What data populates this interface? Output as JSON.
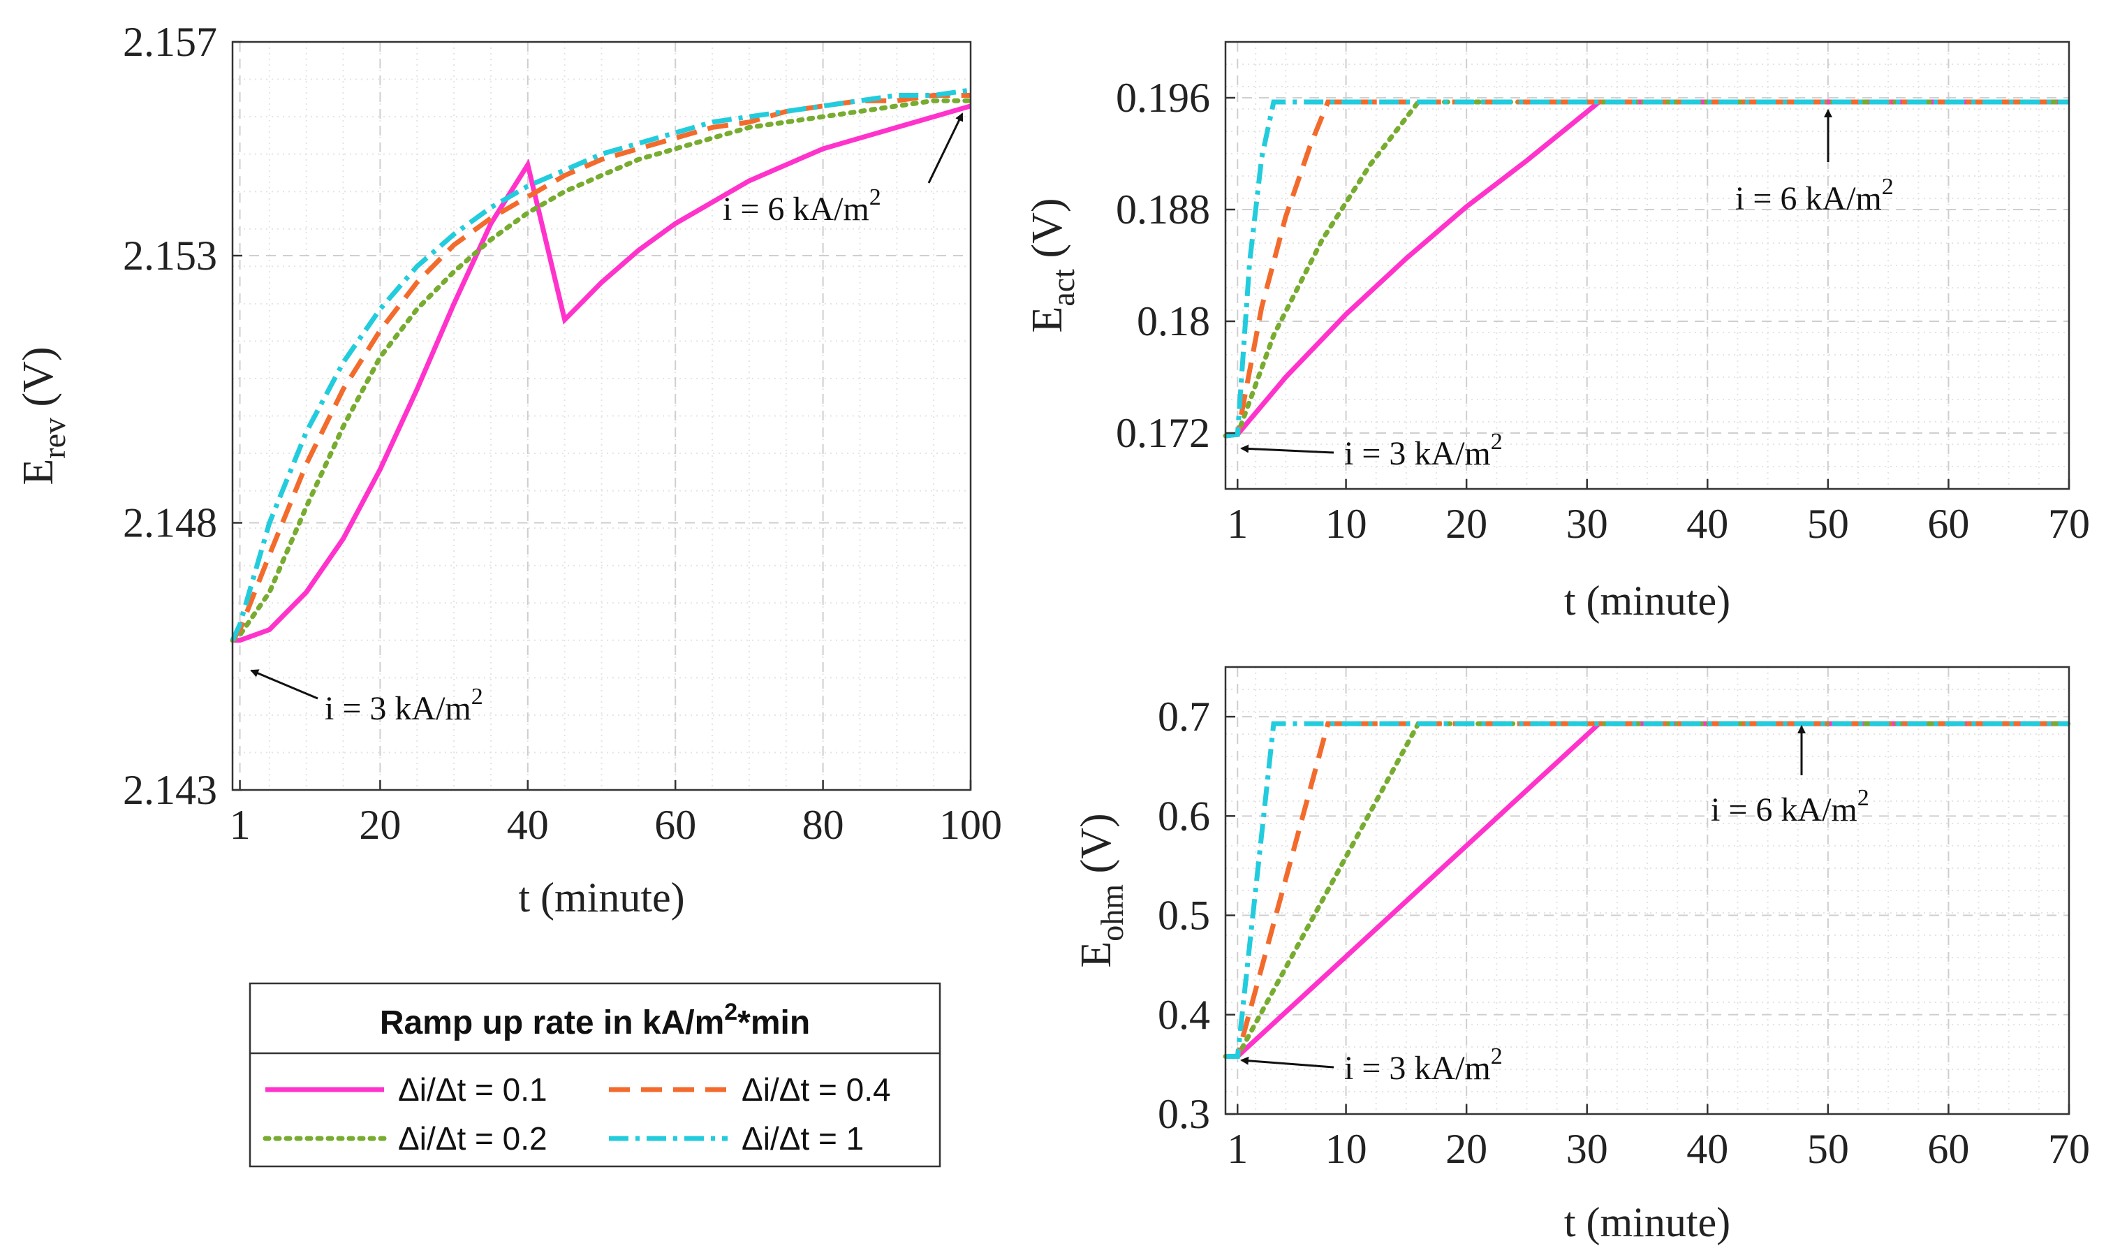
{
  "colors": {
    "rate_0_1": "#ff33cc",
    "rate_0_2": "#77ac30",
    "rate_0_4": "#f36b2c",
    "rate_1": "#22ccdd"
  },
  "legend": {
    "title_prefix": "Ramp up rate in kA/m",
    "title_sup": "2",
    "title_suffix": "*min",
    "entries": [
      {
        "key": "rate_0_1",
        "label": "Δi/Δt = 0.1",
        "dash": "solid"
      },
      {
        "key": "rate_0_4",
        "label": "Δi/Δt = 0.4",
        "dash": "dashed"
      },
      {
        "key": "rate_0_2",
        "label": "Δi/Δt = 0.2",
        "dash": "dotted"
      },
      {
        "key": "rate_1",
        "label": "Δi/Δt = 1",
        "dash": "dashdot"
      }
    ]
  },
  "annotations": {
    "low_prefix": "i = 3 kA/m",
    "high_prefix": "i = 6 kA/m",
    "sup": "2"
  },
  "chart_data": [
    {
      "id": "erev",
      "type": "line",
      "xlabel": "t (minute)",
      "ylabel_main": "E",
      "ylabel_sub": "rev",
      "ylabel_unit": " (V)",
      "xlim": [
        0,
        100
      ],
      "ylim": [
        2.143,
        2.157
      ],
      "xticks": [
        1,
        20,
        40,
        60,
        80,
        100
      ],
      "yticks": [
        2.143,
        2.148,
        2.153,
        2.157
      ],
      "ytick_labels": [
        "2.143",
        "2.148",
        "2.153",
        "2.157"
      ],
      "series": [
        {
          "key": "rate_0_1",
          "name": "Δi/Δt = 0.1",
          "x": [
            0,
            1,
            5,
            10,
            15,
            20,
            25,
            30,
            35,
            40,
            45,
            50,
            55,
            60,
            65,
            70,
            75,
            80,
            85,
            90,
            95,
            100
          ],
          "y": [
            2.1458,
            2.1458,
            2.146,
            2.1467,
            2.1477,
            2.149,
            2.1505,
            2.1521,
            2.1536,
            2.1547,
            2.1518,
            2.1525,
            2.1531,
            2.1536,
            2.154,
            2.1544,
            2.1547,
            2.155,
            2.1552,
            2.1554,
            2.1556,
            2.1558
          ]
        },
        {
          "key": "rate_0_2",
          "name": "Δi/Δt = 0.2",
          "x": [
            0,
            1,
            5,
            10,
            15,
            20,
            25,
            30,
            35,
            40,
            45,
            50,
            55,
            60,
            65,
            70,
            75,
            80,
            85,
            90,
            95,
            100
          ],
          "y": [
            2.1458,
            2.1459,
            2.1467,
            2.1483,
            2.1498,
            2.1511,
            2.152,
            2.1527,
            2.1533,
            2.1538,
            2.1542,
            2.1545,
            2.1548,
            2.155,
            2.1552,
            2.1554,
            2.1555,
            2.1556,
            2.1557,
            2.1558,
            2.1559,
            2.1559
          ]
        },
        {
          "key": "rate_0_4",
          "name": "Δi/Δt = 0.4",
          "x": [
            0,
            1,
            5,
            10,
            15,
            20,
            25,
            30,
            35,
            40,
            45,
            50,
            55,
            60,
            65,
            70,
            75,
            80,
            85,
            90,
            95,
            100
          ],
          "y": [
            2.1458,
            2.146,
            2.1474,
            2.1491,
            2.1505,
            2.1516,
            2.1525,
            2.1532,
            2.1537,
            2.1541,
            2.1545,
            2.1548,
            2.155,
            2.1552,
            2.1554,
            2.1555,
            2.1557,
            2.1558,
            2.1559,
            2.1559,
            2.156,
            2.156
          ]
        },
        {
          "key": "rate_1",
          "name": "Δi/Δt = 1",
          "x": [
            0,
            1,
            5,
            10,
            15,
            20,
            25,
            30,
            35,
            40,
            45,
            50,
            55,
            60,
            65,
            70,
            75,
            80,
            85,
            90,
            95,
            100
          ],
          "y": [
            2.1458,
            2.1461,
            2.148,
            2.1497,
            2.151,
            2.152,
            2.1528,
            2.1534,
            2.1539,
            2.1543,
            2.1546,
            2.1549,
            2.1551,
            2.1553,
            2.1555,
            2.1556,
            2.1557,
            2.1558,
            2.1559,
            2.156,
            2.156,
            2.1561
          ]
        }
      ]
    },
    {
      "id": "eact",
      "type": "line",
      "xlabel": "t (minute)",
      "ylabel_main": "E",
      "ylabel_sub": "act",
      "ylabel_unit": " (V)",
      "xlim": [
        0,
        70
      ],
      "ylim": [
        0.168,
        0.2
      ],
      "xticks": [
        1,
        10,
        20,
        30,
        40,
        50,
        60,
        70
      ],
      "yticks": [
        0.172,
        0.18,
        0.188,
        0.196
      ],
      "ytick_labels": [
        "0.172",
        "0.18",
        "0.188",
        "0.196"
      ],
      "series": [
        {
          "key": "rate_0_1",
          "name": "Δi/Δt = 0.1",
          "x": [
            0,
            1,
            5,
            10,
            15,
            20,
            25,
            31,
            70
          ],
          "y": [
            0.1718,
            0.1719,
            0.176,
            0.1805,
            0.1845,
            0.1882,
            0.1915,
            0.1957,
            0.1957
          ]
        },
        {
          "key": "rate_0_2",
          "name": "Δi/Δt = 0.2",
          "x": [
            0,
            1,
            4,
            8,
            12,
            16,
            70
          ],
          "y": [
            0.1718,
            0.1719,
            0.179,
            0.1858,
            0.1912,
            0.1957,
            0.1957
          ]
        },
        {
          "key": "rate_0_4",
          "name": "Δi/Δt = 0.4",
          "x": [
            0,
            1,
            3,
            5,
            7,
            8.5,
            70
          ],
          "y": [
            0.1718,
            0.1719,
            0.181,
            0.1875,
            0.1925,
            0.1957,
            0.1957
          ]
        },
        {
          "key": "rate_1",
          "name": "Δi/Δt = 1",
          "x": [
            0,
            1,
            2,
            3,
            4,
            70
          ],
          "y": [
            0.1718,
            0.1719,
            0.1842,
            0.1917,
            0.1957,
            0.1957
          ]
        }
      ]
    },
    {
      "id": "eohm",
      "type": "line",
      "xlabel": "t (minute)",
      "ylabel_main": "E",
      "ylabel_sub": "ohm",
      "ylabel_unit": " (V)",
      "xlim": [
        0,
        70
      ],
      "ylim": [
        0.3,
        0.75
      ],
      "xticks": [
        1,
        10,
        20,
        30,
        40,
        50,
        60,
        70
      ],
      "yticks": [
        0.3,
        0.4,
        0.5,
        0.6,
        0.7
      ],
      "ytick_labels": [
        "0.3",
        "0.4",
        "0.5",
        "0.6",
        "0.7"
      ],
      "series": [
        {
          "key": "rate_0_1",
          "name": "Δi/Δt = 0.1",
          "x": [
            0,
            1,
            31,
            70
          ],
          "y": [
            0.358,
            0.358,
            0.693,
            0.693
          ]
        },
        {
          "key": "rate_0_2",
          "name": "Δi/Δt = 0.2",
          "x": [
            0,
            1,
            16,
            70
          ],
          "y": [
            0.358,
            0.358,
            0.693,
            0.693
          ]
        },
        {
          "key": "rate_0_4",
          "name": "Δi/Δt = 0.4",
          "x": [
            0,
            1,
            8.5,
            70
          ],
          "y": [
            0.358,
            0.358,
            0.693,
            0.693
          ]
        },
        {
          "key": "rate_1",
          "name": "Δi/Δt = 1",
          "x": [
            0,
            1,
            4,
            70
          ],
          "y": [
            0.358,
            0.358,
            0.693,
            0.693
          ]
        }
      ]
    }
  ]
}
